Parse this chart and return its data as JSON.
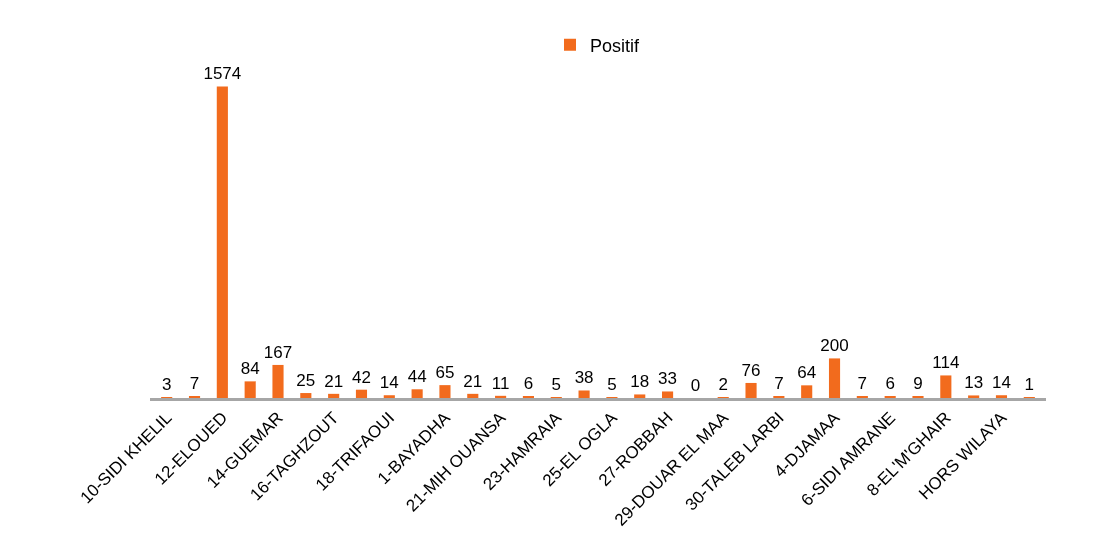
{
  "chart_data": {
    "type": "bar",
    "categories": [
      "10-SIDI KHELIL",
      null,
      "12-ELOUED",
      null,
      "14-GUEMAR",
      null,
      "16-TAGHZOUT",
      null,
      "18-TRIFAOUI",
      null,
      "1-BAYADHA",
      null,
      "21-MIH OUANSA",
      null,
      "23-HAMRAIA",
      null,
      "25-EL OGLA",
      null,
      "27-ROBBAH",
      null,
      "29-DOUAR EL MAA",
      null,
      "30-TALEB LARBI",
      null,
      "4-DJAMAA",
      null,
      "6-SIDI AMRANE",
      null,
      "8-EL'M'GHAIR",
      null,
      "HORS WILAYA",
      null
    ],
    "series": [
      {
        "name": "Positif",
        "color": "#f26b1d",
        "values": [
          3,
          7,
          1574,
          84,
          167,
          25,
          21,
          42,
          14,
          44,
          65,
          21,
          11,
          6,
          5,
          38,
          5,
          18,
          33,
          0,
          2,
          76,
          7,
          64,
          200,
          7,
          6,
          9,
          114,
          13,
          14,
          1
        ]
      }
    ],
    "data_labels": true,
    "legend": "top",
    "tick_labels": "x"
  }
}
